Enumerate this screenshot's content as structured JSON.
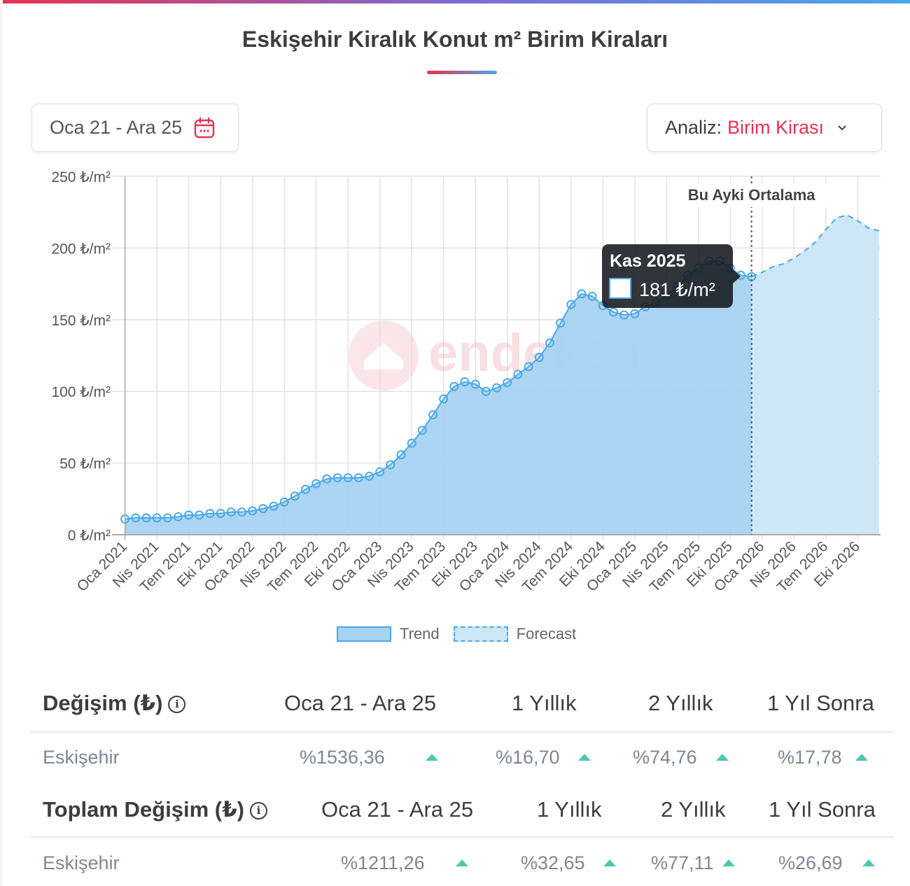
{
  "title": "Eskişehir Kiralık Konut m² Birim Kiraları",
  "date_range_button": {
    "label": "Oca 21 - Ara 25",
    "icon": "calendar-icon"
  },
  "analysis_dropdown": {
    "label": "Analiz:",
    "value": "Birim Kirası",
    "icon": "chevron-down-icon"
  },
  "colors": {
    "accent": "#e8334f",
    "trend": "#4aa8e8",
    "trend_fill": "#a6d3f2",
    "forecast_fill": "#cde6f8",
    "up": "#4fc7b4"
  },
  "watermark": "endeksa",
  "chart_data": {
    "type": "area",
    "ylim": [
      0,
      250
    ],
    "yticks": [
      "0 ₺/m²",
      "50 ₺/m²",
      "100 ₺/m²",
      "150 ₺/m²",
      "200 ₺/m²",
      "250 ₺/m²"
    ],
    "ytick_values": [
      0,
      50,
      100,
      150,
      200,
      250
    ],
    "xticks": [
      "Oca 2021",
      "Nis 2021",
      "Tem 2021",
      "Eki 2021",
      "Oca 2022",
      "Nis 2022",
      "Tem 2022",
      "Eki 2022",
      "Oca 2023",
      "Nis 2023",
      "Tem 2023",
      "Eki 2023",
      "Oca 2024",
      "Nis 2024",
      "Tem 2024",
      "Eki 2024",
      "Oca 2025",
      "Nis 2025",
      "Tem 2025",
      "Eki 2025",
      "Oca 2026",
      "Nis 2026",
      "Tem 2026",
      "Eki 2026"
    ],
    "x_start": "Oca 2021",
    "grid": true,
    "legend_position": "bottom",
    "series": [
      {
        "name": "Trend",
        "style": "solid-with-markers",
        "values": [
          10.9,
          11.7,
          11.7,
          11.7,
          11.7,
          12.5,
          13.7,
          13.7,
          14.8,
          14.8,
          15.8,
          15.8,
          16.6,
          18.2,
          19.9,
          22.8,
          26.9,
          31.6,
          35.6,
          38.9,
          39.7,
          39.7,
          39.7,
          40.8,
          43.8,
          48.8,
          55.7,
          63.8,
          72.8,
          83.6,
          94.7,
          103.4,
          106.6,
          105,
          99.9,
          102.5,
          106.1,
          111.8,
          117.2,
          123.7,
          133.8,
          147.6,
          160.6,
          168,
          166.3,
          159.8,
          155.3,
          153.3,
          154.2,
          159,
          162,
          167,
          173,
          181,
          186,
          191,
          191,
          186,
          181,
          180
        ]
      },
      {
        "name": "Forecast",
        "style": "dashed",
        "start": "Ara 2025",
        "values": [
          180,
          183,
          187,
          189,
          193,
          198,
          204,
          213,
          221,
          223,
          219,
          214,
          212
        ]
      }
    ],
    "annotation": {
      "label": "Bu Ayki Ortalama",
      "at": "Ara 2025"
    },
    "tooltip": {
      "title": "Kas 2025",
      "value": "181 ₺/m²"
    }
  },
  "table1": {
    "title": "Değişim (₺)",
    "columns": [
      "Oca 21 - Ara 25",
      "1 Yıllık",
      "2 Yıllık",
      "1 Yıl Sonra"
    ],
    "row": {
      "label": "Eskişehir",
      "values": [
        "%1536,36",
        "%16,70",
        "%74,76",
        "%17,78"
      ],
      "trend": [
        "up",
        "up",
        "up",
        "up"
      ]
    }
  },
  "table2": {
    "title": "Toplam Değişim (₺)",
    "columns": [
      "Oca 21 - Ara 25",
      "1 Yıllık",
      "2 Yıllık",
      "1 Yıl Sonra"
    ],
    "row": {
      "label": "Eskişehir",
      "values": [
        "%1211,26",
        "%32,65",
        "%77,11",
        "%26,69"
      ],
      "trend": [
        "up",
        "up",
        "up",
        "up"
      ]
    }
  }
}
